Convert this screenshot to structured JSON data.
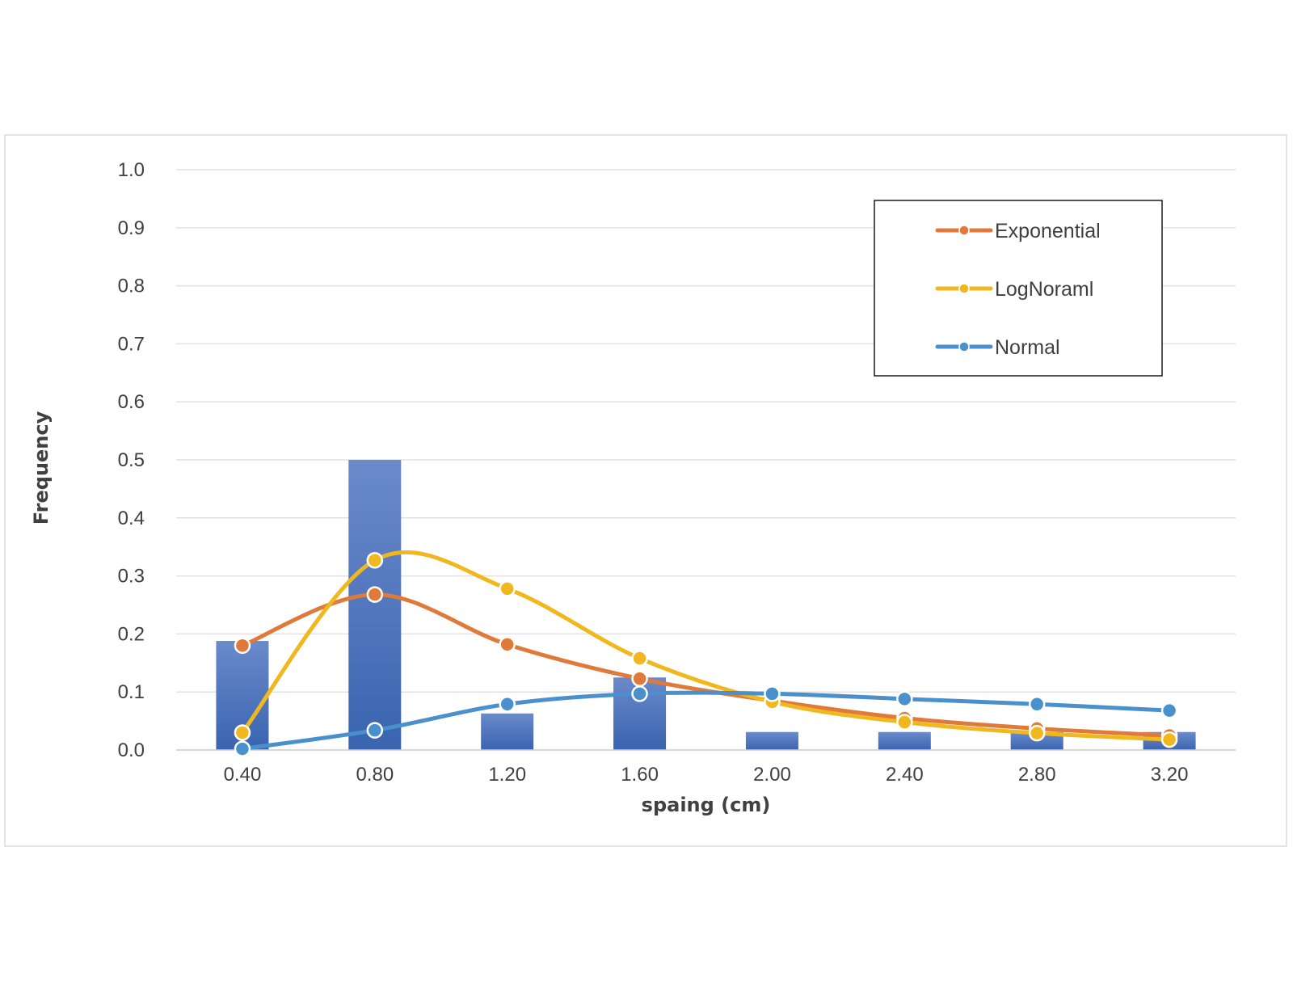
{
  "chart_data": {
    "type": "bar+line",
    "xlabel": "spaing (cm)",
    "ylabel": "Frequency",
    "categories": [
      "0.40",
      "0.80",
      "1.20",
      "1.60",
      "2.00",
      "2.40",
      "2.80",
      "3.20"
    ],
    "ylim": [
      0,
      1.0
    ],
    "yticks": [
      "0.0",
      "0.1",
      "0.2",
      "0.3",
      "0.4",
      "0.5",
      "0.6",
      "0.7",
      "0.8",
      "0.9",
      "1.0"
    ],
    "grid": true,
    "legend_position": "top-right",
    "bars": {
      "values": [
        0.188,
        0.5,
        0.063,
        0.125,
        0.031,
        0.031,
        0.031,
        0.031
      ],
      "color": "#3a64b0"
    },
    "series": [
      {
        "name": "Exponential",
        "color": "#e07a3a",
        "values": [
          0.18,
          0.268,
          0.182,
          0.123,
          0.085,
          0.055,
          0.037,
          0.025
        ]
      },
      {
        "name": "LogNoraml",
        "color": "#f0b81e",
        "values": [
          0.03,
          0.327,
          0.278,
          0.158,
          0.083,
          0.048,
          0.029,
          0.018
        ]
      },
      {
        "name": "Normal",
        "color": "#4a90cc",
        "values": [
          0.002,
          0.034,
          0.079,
          0.097,
          0.097,
          0.088,
          0.079,
          0.068
        ]
      }
    ]
  }
}
